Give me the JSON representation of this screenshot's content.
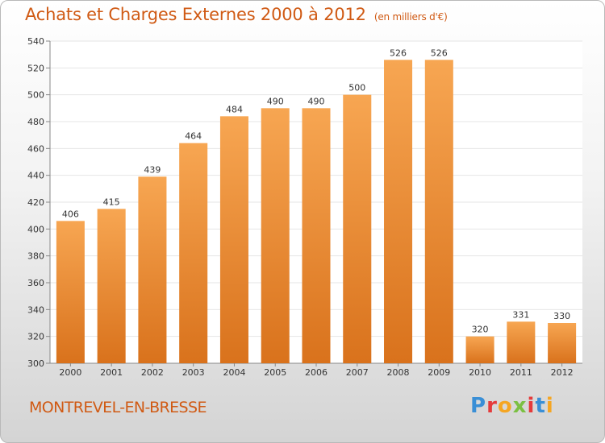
{
  "header": {
    "title": "Achats et Charges Externes 2000 à 2012",
    "unit": "(en milliers d'€)"
  },
  "footer": {
    "place": "MONTREVEL-EN-BRESSE",
    "logo": "Proxiti",
    "logo_colors": [
      "#3a8fd6",
      "#e53b3b",
      "#f5a623",
      "#7bc043",
      "#e53b3b",
      "#3a8fd6",
      "#f5a623"
    ]
  },
  "chart_data": {
    "type": "bar",
    "categories": [
      "2000",
      "2001",
      "2002",
      "2003",
      "2004",
      "2005",
      "2006",
      "2007",
      "2008",
      "2009",
      "2010",
      "2011",
      "2012"
    ],
    "values": [
      406,
      415,
      439,
      464,
      484,
      490,
      490,
      500,
      526,
      526,
      320,
      331,
      330
    ],
    "ylim": [
      300,
      540
    ],
    "yticks": [
      300,
      320,
      340,
      360,
      380,
      400,
      420,
      440,
      460,
      480,
      500,
      520,
      540
    ],
    "grid": true,
    "bar_color_top": "#f7a652",
    "bar_color_bottom": "#d9721c"
  }
}
